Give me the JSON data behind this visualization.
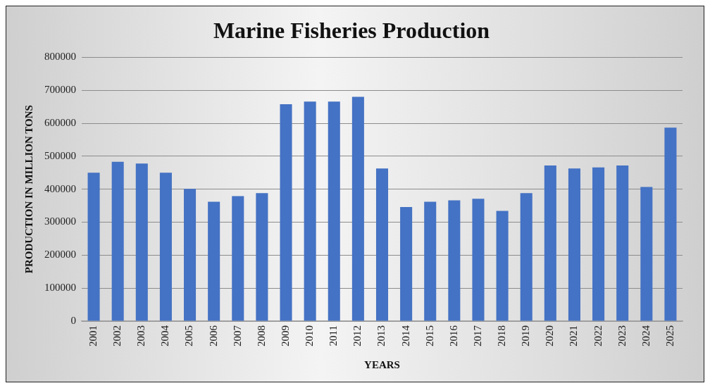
{
  "chart_data": {
    "type": "bar",
    "title": "Marine Fisheries Production",
    "xlabel": "YEARS",
    "ylabel": "PRODUCTION IN MILLION TONS",
    "categories": [
      "2001",
      "2002",
      "2003",
      "2004",
      "2005",
      "2006",
      "2007",
      "2008",
      "2009",
      "2010",
      "2011",
      "2012",
      "2013",
      "2014",
      "2015",
      "2016",
      "2017",
      "2018",
      "2019",
      "2020",
      "2021",
      "2022",
      "2023",
      "2024",
      "2025"
    ],
    "values": [
      450000,
      483000,
      478000,
      450000,
      401000,
      362000,
      379000,
      388000,
      658000,
      666000,
      666000,
      680000,
      463000,
      346000,
      362000,
      366000,
      371000,
      334000,
      388000,
      472000,
      463000,
      466000,
      472000,
      407000,
      587000
    ],
    "color": "#4472c4",
    "ylim": [
      0,
      800000
    ],
    "yticks": [
      0,
      100000,
      200000,
      300000,
      400000,
      500000,
      600000,
      700000,
      800000
    ],
    "grid": "y",
    "legend": false
  }
}
